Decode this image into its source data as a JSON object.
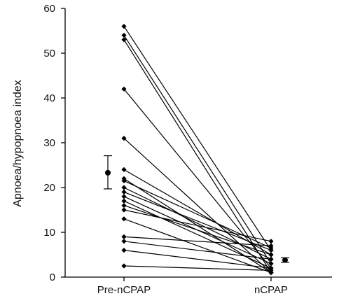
{
  "chart_data": {
    "type": "line",
    "categories": [
      "Pre-nCPAP",
      "nCPAP"
    ],
    "ylabel": "Apnoea/hypopnoea index",
    "ylim": [
      0,
      60
    ],
    "yticks": [
      0,
      10,
      20,
      30,
      40,
      50,
      60
    ],
    "grid": false,
    "legend": "none",
    "pairs": [
      [
        56,
        6
      ],
      [
        54,
        3
      ],
      [
        53,
        1
      ],
      [
        42,
        2
      ],
      [
        31,
        1
      ],
      [
        24,
        5
      ],
      [
        22,
        1
      ],
      [
        21.5,
        6.5
      ],
      [
        20,
        4
      ],
      [
        19,
        6
      ],
      [
        18,
        3
      ],
      [
        17,
        2
      ],
      [
        16,
        5
      ],
      [
        15,
        8
      ],
      [
        13,
        1
      ],
      [
        9,
        7
      ],
      [
        8,
        4
      ],
      [
        6,
        2
      ],
      [
        2.5,
        1.5
      ]
    ],
    "summary": [
      {
        "category": "Pre-nCPAP",
        "mean": 23.3,
        "low": 19.7,
        "high": 27.1
      },
      {
        "category": "nCPAP",
        "mean": 3.8,
        "low": 3.3,
        "high": 4.3
      }
    ]
  }
}
